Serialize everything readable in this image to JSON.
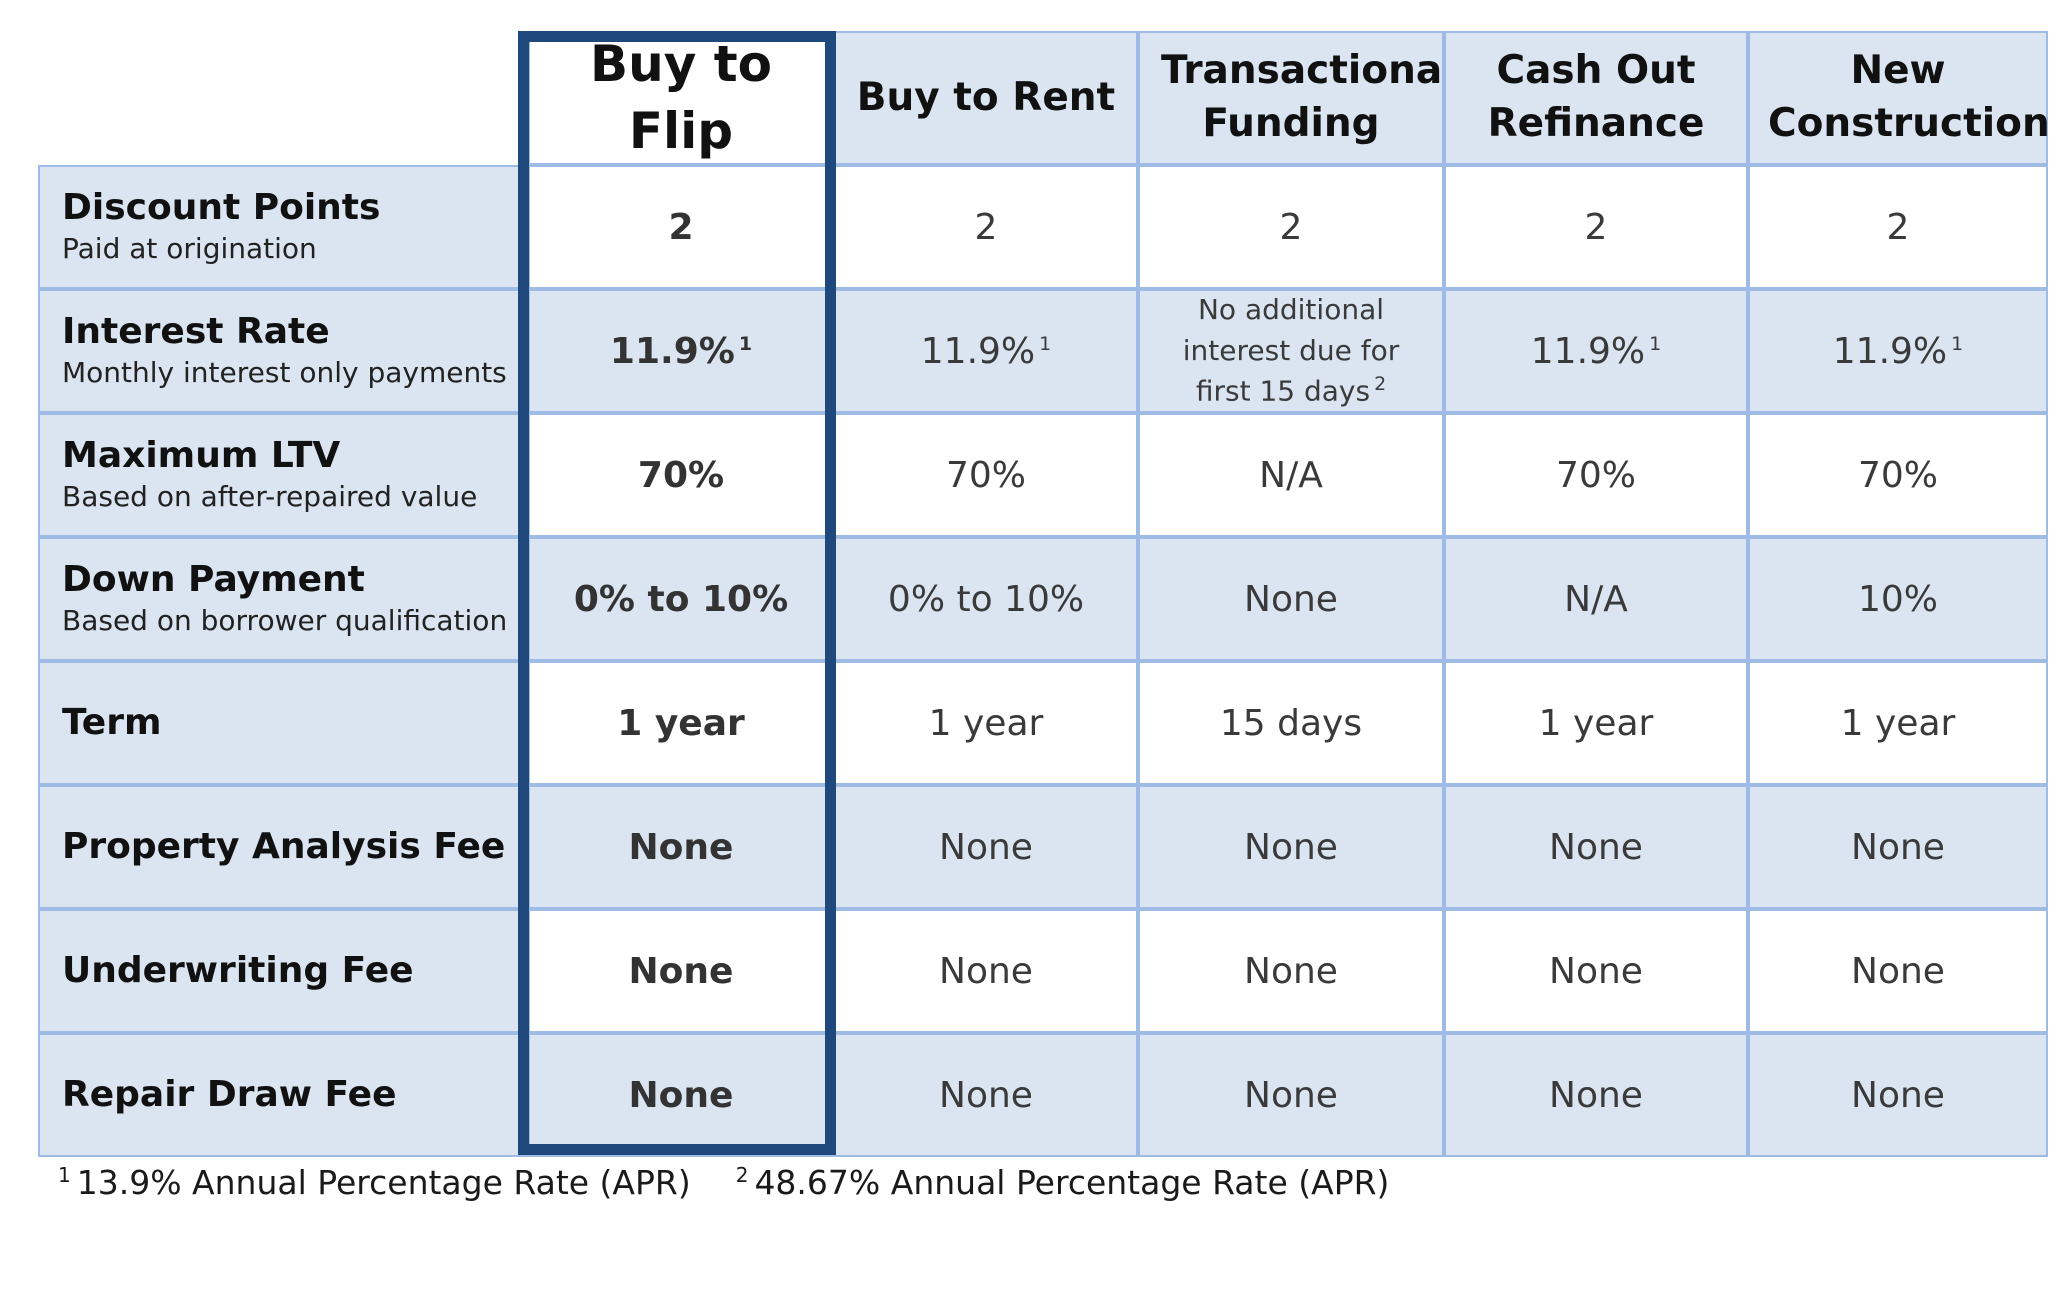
{
  "columns": [
    {
      "label": "Buy to Flip"
    },
    {
      "label": "Buy to Rent"
    },
    {
      "label": "Transactional Funding"
    },
    {
      "label": "Cash Out Refinance"
    },
    {
      "label": "New Construction"
    }
  ],
  "rows": [
    {
      "title": "Discount Points",
      "subtitle": "Paid at origination",
      "values": [
        "2",
        "2",
        "2",
        "2",
        "2"
      ]
    },
    {
      "title": "Interest Rate",
      "subtitle": "Monthly interest only payments",
      "values": [
        "11.9%",
        "11.9%",
        "No additional interest due for first 15 days",
        "11.9%",
        "11.9%"
      ],
      "footnote_marks": [
        "1",
        "1",
        "2",
        "1",
        "1"
      ]
    },
    {
      "title": "Maximum LTV",
      "subtitle": "Based on after-repaired value",
      "values": [
        "70%",
        "70%",
        "N/A",
        "70%",
        "70%"
      ]
    },
    {
      "title": "Down Payment",
      "subtitle": "Based on borrower qualification",
      "values": [
        "0% to 10%",
        "0% to 10%",
        "None",
        "N/A",
        "10%"
      ]
    },
    {
      "title": "Term",
      "subtitle": "",
      "values": [
        "1 year",
        "1 year",
        "15 days",
        "1 year",
        "1 year"
      ]
    },
    {
      "title": "Property Analysis Fee",
      "subtitle": "",
      "values": [
        "None",
        "None",
        "None",
        "None",
        "None"
      ]
    },
    {
      "title": "Underwriting Fee",
      "subtitle": "",
      "values": [
        "None",
        "None",
        "None",
        "None",
        "None"
      ]
    },
    {
      "title": "Repair Draw Fee",
      "subtitle": "",
      "values": [
        "None",
        "None",
        "None",
        "None",
        "None"
      ]
    }
  ],
  "footnotes": [
    {
      "mark": "1",
      "text": "13.9% Annual Percentage Rate (APR)"
    },
    {
      "mark": "2",
      "text": "48.67% Annual Percentage Rate (APR)"
    }
  ],
  "colors": {
    "shaded_cell": "#dbe5f1",
    "border": "#9dbbe5",
    "highlight_border": "#1f497d"
  }
}
